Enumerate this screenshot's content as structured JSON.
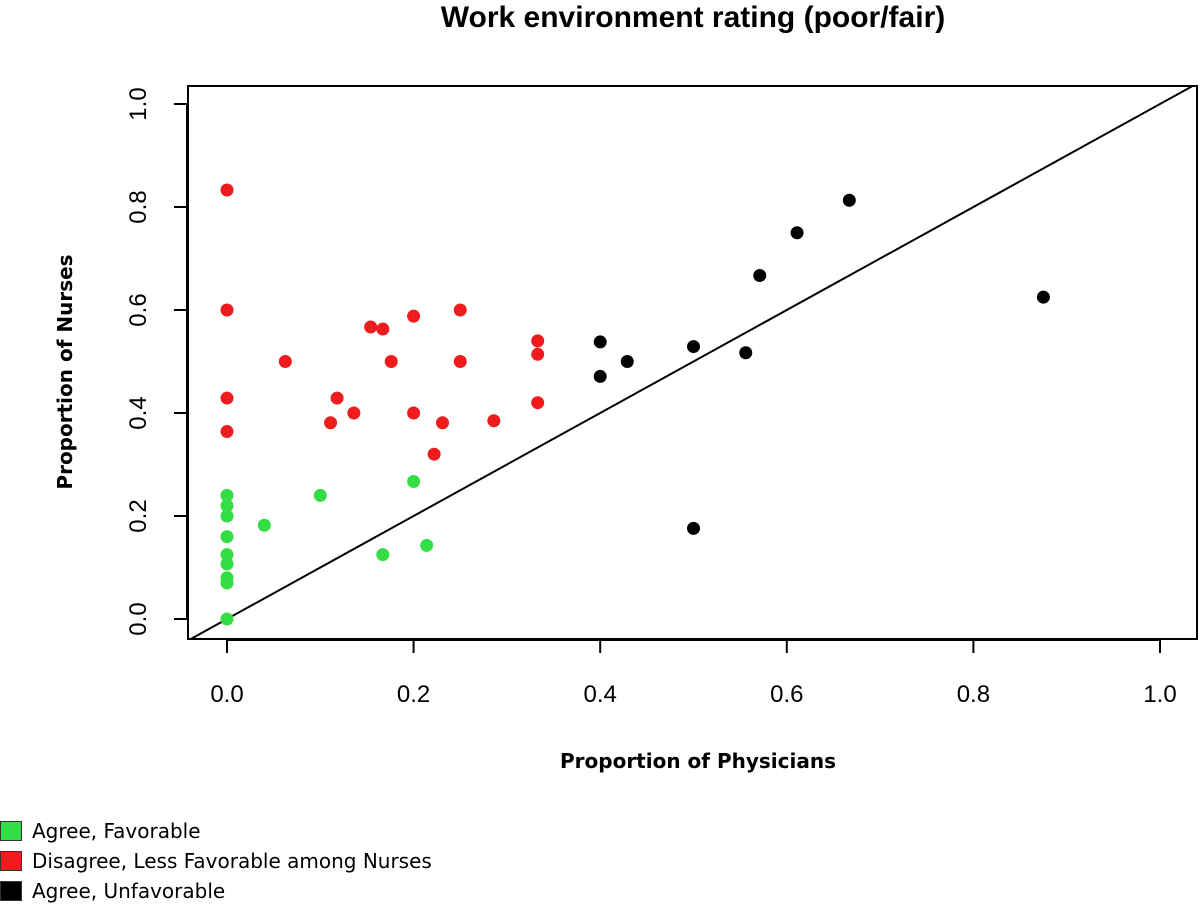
{
  "chart_data": {
    "type": "scatter",
    "title": "Work environment rating (poor/fair)",
    "xlabel": "Proportion of Physicians",
    "ylabel": "Proportion of Nurses",
    "xlim": [
      0.0,
      1.0
    ],
    "ylim": [
      0.0,
      1.0
    ],
    "x_ticks": [
      "0.0",
      "0.2",
      "0.4",
      "0.6",
      "0.8",
      "1.0"
    ],
    "y_ticks": [
      "0.0",
      "0.2",
      "0.4",
      "0.6",
      "0.8",
      "1.0"
    ],
    "grid": false,
    "reference_line": "y = x",
    "legend_position": "bottom-left",
    "series": [
      {
        "name": "Agree, Favorable",
        "color": "#33dd44",
        "points": [
          [
            0.0,
            0.0
          ],
          [
            0.0,
            0.07
          ],
          [
            0.0,
            0.08
          ],
          [
            0.0,
            0.107
          ],
          [
            0.0,
            0.125
          ],
          [
            0.0,
            0.16
          ],
          [
            0.0,
            0.2
          ],
          [
            0.0,
            0.22
          ],
          [
            0.0,
            0.24
          ],
          [
            0.04,
            0.182
          ],
          [
            0.1,
            0.24
          ],
          [
            0.167,
            0.125
          ],
          [
            0.2,
            0.267
          ],
          [
            0.214,
            0.143
          ]
        ]
      },
      {
        "name": "Disagree, Less Favorable among Nurses",
        "color": "#ee1c1c",
        "points": [
          [
            0.0,
            0.833
          ],
          [
            0.0,
            0.6
          ],
          [
            0.0,
            0.429
          ],
          [
            0.0,
            0.364
          ],
          [
            0.0625,
            0.5
          ],
          [
            0.111,
            0.381
          ],
          [
            0.118,
            0.429
          ],
          [
            0.136,
            0.4
          ],
          [
            0.154,
            0.567
          ],
          [
            0.167,
            0.563
          ],
          [
            0.176,
            0.5
          ],
          [
            0.2,
            0.588
          ],
          [
            0.2,
            0.4
          ],
          [
            0.222,
            0.32
          ],
          [
            0.231,
            0.381
          ],
          [
            0.25,
            0.6
          ],
          [
            0.25,
            0.5
          ],
          [
            0.286,
            0.385
          ],
          [
            0.333,
            0.54
          ],
          [
            0.333,
            0.514
          ],
          [
            0.333,
            0.42
          ]
        ]
      },
      {
        "name": "Agree, Unfavorable",
        "color": "#000000",
        "points": [
          [
            0.4,
            0.538
          ],
          [
            0.4,
            0.471
          ],
          [
            0.429,
            0.5
          ],
          [
            0.5,
            0.529
          ],
          [
            0.5,
            0.176
          ],
          [
            0.556,
            0.517
          ],
          [
            0.571,
            0.667
          ],
          [
            0.611,
            0.75
          ],
          [
            0.667,
            0.813
          ],
          [
            0.875,
            0.625
          ]
        ]
      }
    ]
  }
}
